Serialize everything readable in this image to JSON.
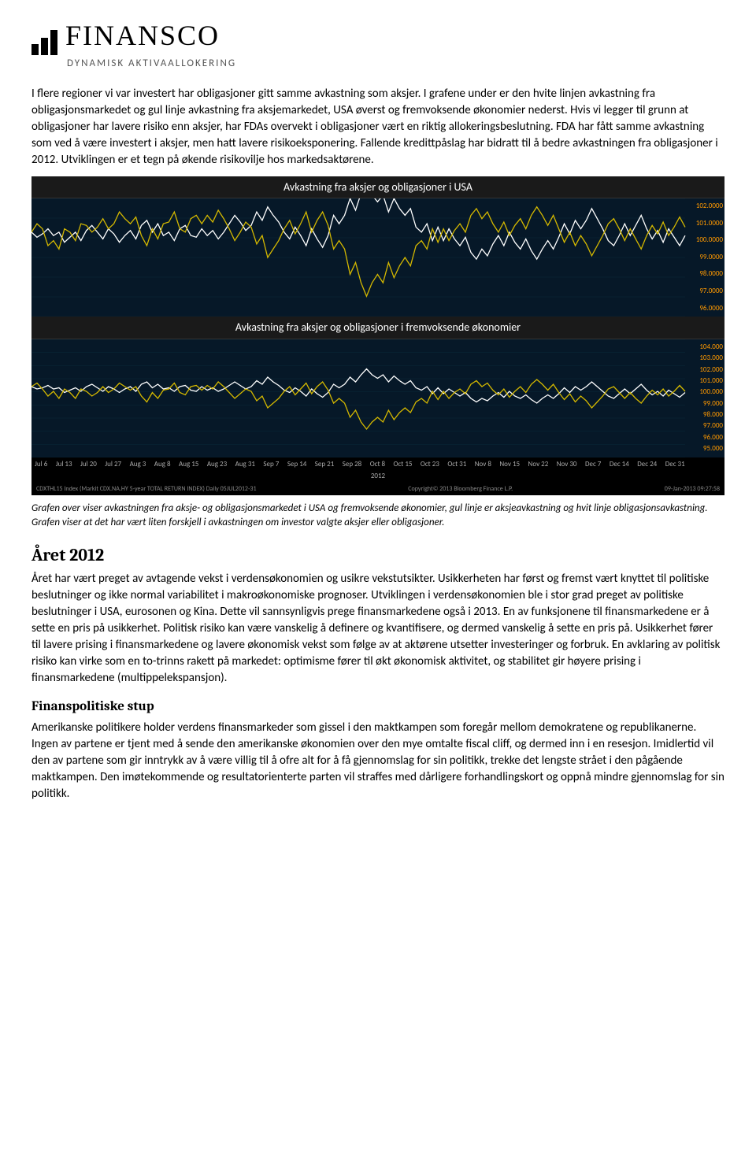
{
  "logo": {
    "name": "FINANSCO",
    "tagline": "DYNAMISK AKTIVAALLOKERING"
  },
  "intro_para": "I flere regioner vi var investert har obligasjoner gitt samme avkastning som aksjer. I grafene under er den hvite linjen avkastning fra obligasjonsmarkedet og gul linje avkastning fra aksjemarkedet, USA øverst og fremvoksende økonomier nederst. Hvis vi legger til grunn at obligasjoner har lavere risiko enn aksjer, har FDAs overvekt i obligasjoner vært en riktig allokeringsbeslutning. FDA har fått samme avkastning som ved å være investert i aksjer, men hatt lavere risikoeksponering. Fallende kredittpåslag har bidratt til å bedre avkastningen fra obligasjoner i 2012. Utviklingen er et tegn på økende risikovilje hos markedsaktørene.",
  "chart1": {
    "type": "line",
    "title": "Avkastning fra aksjer og obligasjoner i USA",
    "background_color": "#061828",
    "grid_color": "#0a2a3a",
    "line1_color": "#d4b800",
    "line2_color": "#ffffff",
    "ylim": [
      95,
      102
    ],
    "yticks": [
      "102.0000",
      "101.0000",
      "100.0000",
      "99.0000",
      "98.0000",
      "97.0000",
      "96.0000"
    ],
    "series_yellow": [
      100,
      100.5,
      100.2,
      99.2,
      99.5,
      99.0,
      100.2,
      100.0,
      99.5,
      100.5,
      100.4,
      100.0,
      100.3,
      100.8,
      100.2,
      100.5,
      101.2,
      100.8,
      100.5,
      100.9,
      99.8,
      99.2,
      100.2,
      99.6,
      100.5,
      100.6,
      101.2,
      100.2,
      100.0,
      100.8,
      101.0,
      100.5,
      101.0,
      100.6,
      101.3,
      100.8,
      100.2,
      99.5,
      100.0,
      100.6,
      100.3,
      99.3,
      99.8,
      98.5,
      99.0,
      99.5,
      100.2,
      100.7,
      99.9,
      100.5,
      101.2,
      100.0,
      100.7,
      101.2,
      100.4,
      99.0,
      99.5,
      99.0,
      97.5,
      98.2,
      97.0,
      96.2,
      97.0,
      97.5,
      97.0,
      98.2,
      97.3,
      98.0,
      98.5,
      98.0,
      99.2,
      99.5,
      99.0,
      100.2,
      99.4,
      100.2,
      99.5,
      100.1,
      100.5,
      100.0,
      101.0,
      101.4,
      100.8,
      101.2,
      100.5,
      100.0,
      100.6,
      99.8,
      100.4,
      100.8,
      100.2,
      101.0,
      101.5,
      101.0,
      100.4,
      101.0,
      100.2,
      99.4,
      100.0,
      99.2,
      99.8,
      99.3,
      98.6,
      99.2,
      99.8,
      100.5,
      100.8,
      100.2,
      99.5,
      100.2,
      99.6,
      99.0,
      99.8,
      100.4,
      99.9,
      100.6,
      99.8,
      100.3,
      100.9,
      100.3
    ],
    "series_white": [
      100,
      99.7,
      99.9,
      100.2,
      99.8,
      100.0,
      99.4,
      99.7,
      100.0,
      99.5,
      100.1,
      100.4,
      100.0,
      99.6,
      100.2,
      99.9,
      99.4,
      99.8,
      100.1,
      99.6,
      100.4,
      100.7,
      100.0,
      100.5,
      99.8,
      100.0,
      99.5,
      100.2,
      100.4,
      99.8,
      99.7,
      100.2,
      99.8,
      100.1,
      99.6,
      100.0,
      100.5,
      101.0,
      100.6,
      100.1,
      100.4,
      101.2,
      100.7,
      101.5,
      101.0,
      100.6,
      100.0,
      99.6,
      100.3,
      99.8,
      99.2,
      100.2,
      99.6,
      99.1,
      99.8,
      101.0,
      100.5,
      101.0,
      102.0,
      101.3,
      102.3,
      103.0,
      102.2,
      101.8,
      102.2,
      101.2,
      102.0,
      101.4,
      101.0,
      101.4,
      100.3,
      100.0,
      100.5,
      99.5,
      100.3,
      99.5,
      100.2,
      99.6,
      99.2,
      99.7,
      98.8,
      98.4,
      99.0,
      98.6,
      99.3,
      99.8,
      99.2,
      100.0,
      99.4,
      99.0,
      99.6,
      98.9,
      98.4,
      99.0,
      99.5,
      99.0,
      99.7,
      100.5,
      99.9,
      100.7,
      100.2,
      100.7,
      101.4,
      100.8,
      100.2,
      99.5,
      99.2,
      99.8,
      100.5,
      99.8,
      100.4,
      101.0,
      100.2,
      99.6,
      100.1,
      99.4,
      100.2,
      99.7,
      99.2,
      99.8
    ]
  },
  "chart2": {
    "type": "line",
    "title": "Avkastning fra aksjer og obligasjoner i fremvoksende økonomier",
    "background_color": "#061828",
    "grid_color": "#0a2a3a",
    "line1_color": "#d4b800",
    "line2_color": "#ffffff",
    "ylim": [
      94,
      104
    ],
    "yticks": [
      "104.000",
      "103.000",
      "102.000",
      "101.000",
      "100.000",
      "99.000",
      "98.000",
      "97.000",
      "96.000",
      "95.000"
    ],
    "series_yellow": [
      100,
      100.3,
      99.8,
      99.2,
      99.6,
      99.0,
      99.8,
      99.5,
      99.0,
      99.8,
      99.6,
      99.2,
      99.5,
      100.0,
      99.5,
      99.8,
      100.3,
      100.0,
      99.7,
      100.0,
      99.2,
      98.7,
      99.5,
      99.0,
      99.7,
      99.8,
      100.3,
      99.5,
      99.3,
      100.0,
      100.1,
      99.7,
      100.1,
      99.8,
      100.4,
      100.0,
      99.5,
      99.0,
      99.4,
      99.8,
      99.6,
      98.8,
      99.2,
      98.2,
      98.6,
      99.0,
      99.6,
      100.0,
      99.3,
      99.8,
      100.3,
      99.4,
      100.0,
      100.4,
      99.7,
      98.6,
      99.0,
      98.6,
      97.4,
      98.0,
      97.0,
      96.4,
      97.0,
      97.4,
      97.0,
      98.0,
      97.2,
      97.8,
      98.2,
      97.8,
      98.7,
      99.0,
      98.6,
      99.6,
      98.9,
      99.6,
      99.0,
      99.5,
      99.8,
      99.4,
      100.2,
      100.5,
      100.0,
      100.3,
      99.7,
      99.3,
      99.8,
      99.1,
      99.6,
      100.0,
      99.5,
      100.2,
      100.6,
      100.2,
      99.7,
      100.2,
      99.5,
      98.9,
      99.4,
      98.7,
      99.2,
      98.8,
      98.2,
      98.7,
      99.2,
      99.8,
      100.0,
      99.5,
      99.0,
      99.5,
      99.0,
      98.6,
      99.2,
      99.7,
      99.3,
      99.8,
      99.2,
      99.6,
      100.1,
      99.6
    ],
    "series_white": [
      100,
      99.8,
      99.9,
      100.1,
      99.8,
      99.9,
      99.5,
      99.7,
      99.9,
      99.6,
      100.0,
      100.2,
      99.9,
      99.6,
      100.0,
      99.8,
      99.5,
      99.8,
      100.0,
      99.6,
      100.2,
      100.4,
      99.9,
      100.2,
      99.8,
      99.9,
      99.6,
      100.0,
      100.1,
      99.7,
      99.6,
      100.0,
      99.7,
      99.9,
      99.6,
      99.8,
      100.1,
      100.4,
      100.1,
      99.8,
      100.0,
      100.5,
      100.2,
      100.8,
      100.4,
      100.1,
      99.7,
      99.5,
      99.9,
      99.6,
      99.2,
      99.8,
      99.4,
      99.1,
      99.5,
      100.2,
      99.9,
      100.2,
      100.8,
      100.4,
      101.0,
      101.5,
      101.0,
      100.7,
      101.0,
      100.4,
      100.9,
      100.5,
      100.2,
      100.5,
      99.9,
      99.7,
      100.0,
      99.4,
      99.9,
      99.4,
      99.8,
      99.5,
      99.2,
      99.5,
      99.0,
      98.7,
      99.0,
      98.8,
      99.2,
      99.5,
      99.1,
      99.6,
      99.2,
      99.0,
      99.3,
      98.9,
      98.6,
      99.0,
      99.3,
      99.0,
      99.4,
      99.9,
      99.5,
      100.0,
      99.7,
      100.0,
      100.4,
      100.0,
      99.6,
      99.2,
      99.0,
      99.4,
      99.8,
      99.4,
      99.8,
      100.2,
      99.7,
      99.3,
      99.6,
      99.2,
      99.7,
      99.4,
      99.1,
      99.5
    ]
  },
  "x_axis_labels": [
    "Jul 6",
    "Jul 13",
    "Jul 20",
    "Jul 27",
    "Aug 3",
    "Aug 8",
    "Aug 15",
    "Aug 23",
    "Aug 31",
    "Sep 7",
    "Sep 14",
    "Sep 21",
    "Sep 28",
    "Oct 8",
    "Oct 15",
    "Oct 23",
    "Oct 31",
    "Nov 8",
    "Nov 15",
    "Nov 22",
    "Nov 30",
    "Dec 7",
    "Dec 14",
    "Dec 24",
    "Dec 31"
  ],
  "x_axis_year": "2012",
  "chart_footer_left": "CDXTHL15 Index (Markit CDX.NA.HY 5-year TOTAL RETURN INDEX)  Daily 05JUL2012-31",
  "chart_footer_center": "Copyright© 2013 Bloomberg Finance L.P.",
  "chart_footer_right": "09-Jan-2013 09:27:58",
  "caption": "Grafen over viser avkastningen fra aksje- og obligasjonsmarkedet i USA og fremvoksende økonomier, gul linje er aksjeavkastning og hvit linje obligasjonsavkastning. Grafen viser at det har vært liten forskjell i avkastningen om investor valgte aksjer eller obligasjoner.",
  "section1": {
    "heading": "Året 2012",
    "body": "Året har vært preget av avtagende vekst i verdensøkonomien og usikre vekstutsikter. Usikkerheten har først og fremst vært knyttet til politiske beslutninger og ikke normal variabilitet i makroøkonomiske prognoser. Utviklingen i verdensøkonomien ble i stor grad preget av politiske beslutninger i USA, eurosonen og Kina. Dette vil sannsynligvis prege finansmarkedene også i 2013. En av funksjonene til finansmarkedene er å sette en pris på usikkerhet. Politisk risiko kan være vanskelig å definere og kvantifisere, og dermed vanskelig å sette en pris på. Usikkerhet fører til lavere prising i finansmarkedene og lavere økonomisk vekst som følge av at aktørene utsetter investeringer og forbruk. En avklaring av politisk risiko kan virke som en to-trinns rakett på markedet: optimisme fører til økt økonomisk aktivitet, og stabilitet gir høyere prising i finansmarkedene (multippelekspansjon)."
  },
  "section2": {
    "heading": "Finanspolitiske stup",
    "body": "Amerikanske politikere holder verdens finansmarkeder som gissel i den maktkampen som foregår mellom demokratene og republikanerne. Ingen av partene er tjent med å sende den amerikanske økonomien over den mye omtalte fiscal cliff, og dermed inn i en resesjon. Imidlertid vil den av partene som gir inntrykk av å være villig til å ofre alt for å få gjennomslag for sin politikk, trekke det lengste strået i den pågående maktkampen. Den imøtekommende og resultatorienterte parten vil straffes med dårligere forhandlingskort og oppnå mindre gjennomslag for sin politikk."
  }
}
